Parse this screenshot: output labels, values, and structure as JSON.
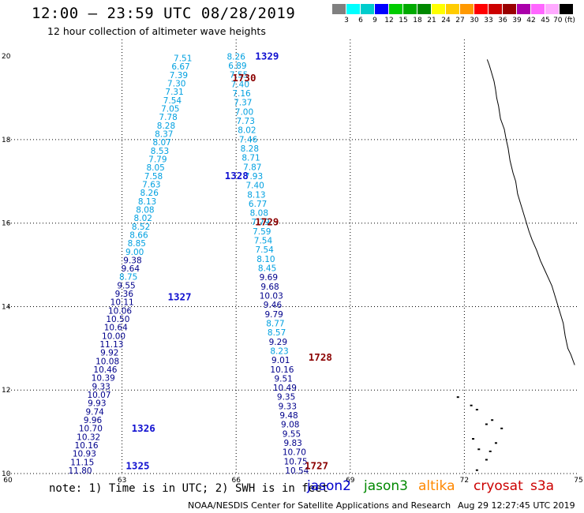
{
  "header": {
    "title": "12:00 — 23:59 UTC 08/28/2019",
    "subtitle": "12 hour collection of altimeter wave heights"
  },
  "colorbar": {
    "colors": [
      "#808080",
      "#00ffff",
      "#00cccc",
      "#0000ff",
      "#00cc00",
      "#00aa00",
      "#008800",
      "#ffff00",
      "#ffcc00",
      "#ff9900",
      "#ff0000",
      "#cc0000",
      "#990000",
      "#aa00aa",
      "#ff66ff",
      "#ffaaff",
      "#000000"
    ],
    "labels": [
      "3",
      "6",
      "9",
      "12",
      "15",
      "18",
      "21",
      "24",
      "27",
      "30",
      "33",
      "36",
      "39",
      "42",
      "45",
      "70 (ft)"
    ]
  },
  "axes": {
    "x_ticks": [
      "60",
      "63",
      "66",
      "69",
      "72",
      "75"
    ],
    "y_ticks": [
      "20",
      "18",
      "16",
      "14",
      "12",
      "10"
    ]
  },
  "colors": {
    "cyan": "#00a0e0",
    "navy": "#00008b",
    "blue": "#1010d0",
    "darkred": "#8b0000"
  },
  "passes": [
    {
      "label": "1329",
      "lon": 66.5,
      "lat": 19.92,
      "color": "blue"
    },
    {
      "label": "1730",
      "lon": 65.9,
      "lat": 19.4,
      "color": "darkred"
    },
    {
      "label": "1328",
      "lon": 65.7,
      "lat": 17.05,
      "color": "blue"
    },
    {
      "label": "1729",
      "lon": 66.5,
      "lat": 15.95,
      "color": "darkred"
    },
    {
      "label": "1327",
      "lon": 64.2,
      "lat": 14.15,
      "color": "blue"
    },
    {
      "label": "1728",
      "lon": 67.9,
      "lat": 12.7,
      "color": "darkred"
    },
    {
      "label": "1326",
      "lon": 63.25,
      "lat": 11.0,
      "color": "blue"
    },
    {
      "label": "1727",
      "lon": 67.8,
      "lat": 10.1,
      "color": "darkred"
    },
    {
      "label": "1325",
      "lon": 63.1,
      "lat": 10.1,
      "color": "blue"
    }
  ],
  "track_a": [
    [
      "7.51",
      "cyan"
    ],
    [
      "6.67",
      "cyan"
    ],
    [
      "7.39",
      "cyan"
    ],
    [
      "7.30",
      "cyan"
    ],
    [
      "7.31",
      "cyan"
    ],
    [
      "7.54",
      "cyan"
    ],
    [
      "7.05",
      "cyan"
    ],
    [
      "7.78",
      "cyan"
    ],
    [
      "8.28",
      "cyan"
    ],
    [
      "8.37",
      "cyan"
    ],
    [
      "8.07",
      "cyan"
    ],
    [
      "8.53",
      "cyan"
    ],
    [
      "7.79",
      "cyan"
    ],
    [
      "8.05",
      "cyan"
    ],
    [
      "7.58",
      "cyan"
    ],
    [
      "7.63",
      "cyan"
    ],
    [
      "8.26",
      "cyan"
    ],
    [
      "8.13",
      "cyan"
    ],
    [
      "8.08",
      "cyan"
    ],
    [
      "8.02",
      "cyan"
    ],
    [
      "8.52",
      "cyan"
    ],
    [
      "8.66",
      "cyan"
    ],
    [
      "8.85",
      "cyan"
    ],
    [
      "9.00",
      "cyan"
    ],
    [
      "9.38",
      "navy"
    ],
    [
      "9.64",
      "navy"
    ],
    [
      "8.75",
      "cyan"
    ],
    [
      "9.55",
      "navy"
    ],
    [
      "9.36",
      "navy"
    ],
    [
      "10.11",
      "navy"
    ],
    [
      "10.06",
      "navy"
    ],
    [
      "10.50",
      "navy"
    ],
    [
      "10.64",
      "navy"
    ],
    [
      "10.00",
      "navy"
    ],
    [
      "11.13",
      "navy"
    ],
    [
      "9.92",
      "navy"
    ],
    [
      "10.08",
      "navy"
    ],
    [
      "10.46",
      "navy"
    ],
    [
      "10.39",
      "navy"
    ],
    [
      "9.33",
      "navy"
    ],
    [
      "10.07",
      "navy"
    ],
    [
      "9.93",
      "navy"
    ],
    [
      "9.74",
      "navy"
    ],
    [
      "9.96",
      "navy"
    ],
    [
      "10.70",
      "navy"
    ],
    [
      "10.32",
      "navy"
    ],
    [
      "10.16",
      "navy"
    ],
    [
      "10.93",
      "navy"
    ],
    [
      "11.15",
      "navy"
    ],
    [
      "11.80",
      "navy"
    ]
  ],
  "track_b": [
    [
      "8.26",
      "cyan"
    ],
    [
      "6.89",
      "cyan"
    ],
    [
      "7.55",
      "cyan"
    ],
    [
      "7.40",
      "cyan"
    ],
    [
      "7.16",
      "cyan"
    ],
    [
      "7.37",
      "cyan"
    ],
    [
      "7.00",
      "cyan"
    ],
    [
      "7.73",
      "cyan"
    ],
    [
      "8.02",
      "cyan"
    ],
    [
      "7.46",
      "cyan"
    ],
    [
      "8.28",
      "cyan"
    ],
    [
      "8.71",
      "cyan"
    ],
    [
      "7.87",
      "cyan"
    ],
    [
      "7.93",
      "cyan"
    ],
    [
      "7.40",
      "cyan"
    ],
    [
      "8.13",
      "cyan"
    ],
    [
      "6.77",
      "cyan"
    ],
    [
      "8.08",
      "cyan"
    ],
    [
      "7.79",
      "cyan"
    ],
    [
      "7.59",
      "cyan"
    ],
    [
      "7.54",
      "cyan"
    ],
    [
      "7.54",
      "cyan"
    ],
    [
      "8.10",
      "cyan"
    ],
    [
      "8.45",
      "cyan"
    ],
    [
      "9.69",
      "navy"
    ],
    [
      "9.68",
      "navy"
    ],
    [
      "10.03",
      "navy"
    ],
    [
      "9.46",
      "navy"
    ],
    [
      "9.79",
      "navy"
    ],
    [
      "8.77",
      "cyan"
    ],
    [
      "8.57",
      "cyan"
    ],
    [
      "9.29",
      "navy"
    ],
    [
      "8.23",
      "cyan"
    ],
    [
      "9.01",
      "navy"
    ],
    [
      "10.16",
      "navy"
    ],
    [
      "9.51",
      "navy"
    ],
    [
      "10.49",
      "navy"
    ],
    [
      "9.35",
      "navy"
    ],
    [
      "9.33",
      "navy"
    ],
    [
      "9.48",
      "navy"
    ],
    [
      "9.08",
      "navy"
    ],
    [
      "9.55",
      "navy"
    ],
    [
      "9.83",
      "navy"
    ],
    [
      "10.70",
      "navy"
    ],
    [
      "10.75",
      "navy"
    ],
    [
      "10.54",
      "navy"
    ]
  ],
  "footer": {
    "note": "note: 1) Time is in UTC; 2) SWH is in feet",
    "sats": [
      {
        "name": "jason2",
        "color": "#0000cc",
        "left": 389
      },
      {
        "name": "jason3",
        "color": "#008800",
        "left": 461
      },
      {
        "name": "altika",
        "color": "#ff8800",
        "left": 530
      },
      {
        "name": "cryosat",
        "color": "#cc0000",
        "left": 600
      },
      {
        "name": "s3a",
        "color": "#cc0000",
        "left": 672
      }
    ],
    "credit": "NOAA/NESDIS Center for Satellite Applications and Research",
    "stamp": "Aug 29 12:27:45 UTC 2019"
  },
  "coastline": [
    [
      72.6,
      19.92
    ],
    [
      72.65,
      19.8
    ],
    [
      72.7,
      19.65
    ],
    [
      72.78,
      19.4
    ],
    [
      72.82,
      19.2
    ],
    [
      72.85,
      19.0
    ],
    [
      72.9,
      18.8
    ],
    [
      72.95,
      18.5
    ],
    [
      73.05,
      18.25
    ],
    [
      73.1,
      18.0
    ],
    [
      73.15,
      17.8
    ],
    [
      73.2,
      17.5
    ],
    [
      73.28,
      17.2
    ],
    [
      73.35,
      17.0
    ],
    [
      73.4,
      16.7
    ],
    [
      73.5,
      16.4
    ],
    [
      73.6,
      16.1
    ],
    [
      73.7,
      15.8
    ],
    [
      73.78,
      15.6
    ],
    [
      73.9,
      15.35
    ],
    [
      74.0,
      15.1
    ],
    [
      74.1,
      14.9
    ],
    [
      74.2,
      14.7
    ],
    [
      74.3,
      14.5
    ],
    [
      74.4,
      14.2
    ],
    [
      74.5,
      13.9
    ],
    [
      74.6,
      13.6
    ],
    [
      74.65,
      13.3
    ],
    [
      74.72,
      13.0
    ],
    [
      74.8,
      12.85
    ],
    [
      74.9,
      12.6
    ]
  ],
  "islands": [
    [
      71.8,
      11.85
    ],
    [
      72.15,
      11.65
    ],
    [
      72.3,
      11.55
    ],
    [
      72.55,
      11.2
    ],
    [
      72.7,
      11.3
    ],
    [
      72.95,
      11.1
    ],
    [
      72.2,
      10.85
    ],
    [
      72.35,
      10.6
    ],
    [
      72.65,
      10.55
    ],
    [
      72.8,
      10.75
    ],
    [
      72.55,
      10.35
    ],
    [
      72.3,
      10.1
    ]
  ]
}
